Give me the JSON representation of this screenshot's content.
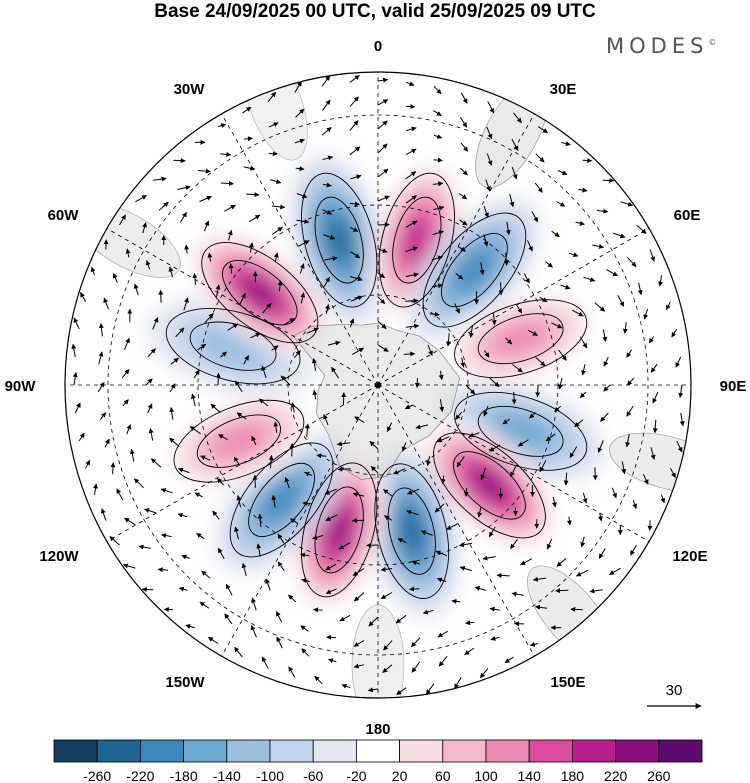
{
  "title": "Base 24/09/2025 00 UTC, valid 25/09/2025 09 UTC",
  "brand": "MODES",
  "brand_mark": "©",
  "longitude_labels": {
    "lon_0": "0",
    "lon_30e": "30E",
    "lon_60e": "60E",
    "lon_90e": "90E",
    "lon_120e": "120E",
    "lon_150e": "150E",
    "lon_180": "180",
    "lon_150w": "150W",
    "lon_120w": "120W",
    "lon_90w": "90W",
    "lon_60w": "60W",
    "lon_30w": "30W"
  },
  "reference_vector": {
    "label": "30",
    "value": 30
  },
  "colors": {
    "land": "#dcdcdc",
    "neg_strong": "#1b5f86",
    "pos_strong": "#5a0b6e",
    "zero": "#ffffff"
  },
  "colorbar": {
    "colors": [
      "#13405e",
      "#1d6694",
      "#3d88bd",
      "#6fa7d0",
      "#9cbfe0",
      "#c3d3ea",
      "#e3e6f3",
      "#ffffff",
      "#f8dde2",
      "#f4b9cc",
      "#ec8ab6",
      "#dc4d9d",
      "#b81c8d",
      "#8c0f7e",
      "#5a0b6e"
    ],
    "tick_labels": [
      "-260",
      "-220",
      "-180",
      "-140",
      "-100",
      "-60",
      "-20",
      "20",
      "60",
      "100",
      "140",
      "180",
      "220",
      "260"
    ]
  },
  "chart_data": {
    "type": "polar-stereographic map, filled contours with wind vectors",
    "title": "Base 24/09/2025 00 UTC, valid 25/09/2025 09 UTC",
    "hemisphere": "south",
    "contour_levels": [
      -260,
      -220,
      -180,
      -140,
      -100,
      -60,
      -20,
      20,
      60,
      100,
      140,
      180,
      220,
      260
    ],
    "anomaly_centers": [
      {
        "lon": -15,
        "sign": "negative",
        "max_level": -220
      },
      {
        "lon": 15,
        "sign": "positive",
        "max_level": 220
      },
      {
        "lon": 40,
        "sign": "negative",
        "max_level": -180
      },
      {
        "lon": 72,
        "sign": "positive",
        "max_level": 140
      },
      {
        "lon": 108,
        "sign": "negative",
        "max_level": -140
      },
      {
        "lon": 132,
        "sign": "positive",
        "max_level": 260
      },
      {
        "lon": 167,
        "sign": "negative",
        "max_level": -220
      },
      {
        "lon": -165,
        "sign": "positive",
        "max_level": 260
      },
      {
        "lon": -140,
        "sign": "negative",
        "max_level": -180
      },
      {
        "lon": -112,
        "sign": "positive",
        "max_level": 140
      },
      {
        "lon": -75,
        "sign": "negative",
        "max_level": -100
      },
      {
        "lon": -52,
        "sign": "positive",
        "max_level": 260
      }
    ],
    "reference_vector": 30
  }
}
